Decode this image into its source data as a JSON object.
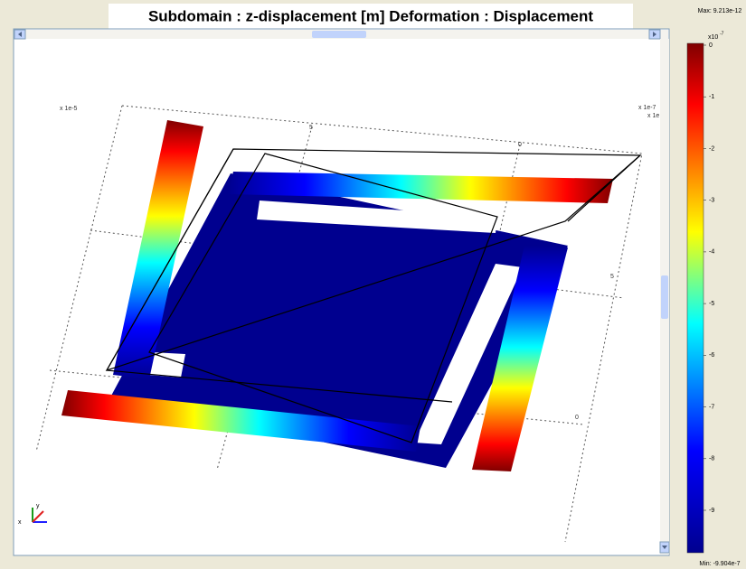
{
  "window": {
    "title": "Subdomain : z-displacement [m] Deformation : Displacement"
  },
  "plot": {
    "axis_labels": [
      "x 1e-5",
      "x 1e-7",
      "x 1e",
      "5",
      "0",
      "5",
      "0"
    ],
    "triad": [
      "y",
      "x"
    ]
  },
  "colorbar": {
    "max": "Max: 9.213e-12",
    "min": "Min: -9.904e-7",
    "scale": "x10",
    "scale_exp": "-7",
    "ticks": [
      "0",
      "-1",
      "-2",
      "-3",
      "-4",
      "-5",
      "-6",
      "-7",
      "-8",
      "-9"
    ]
  }
}
